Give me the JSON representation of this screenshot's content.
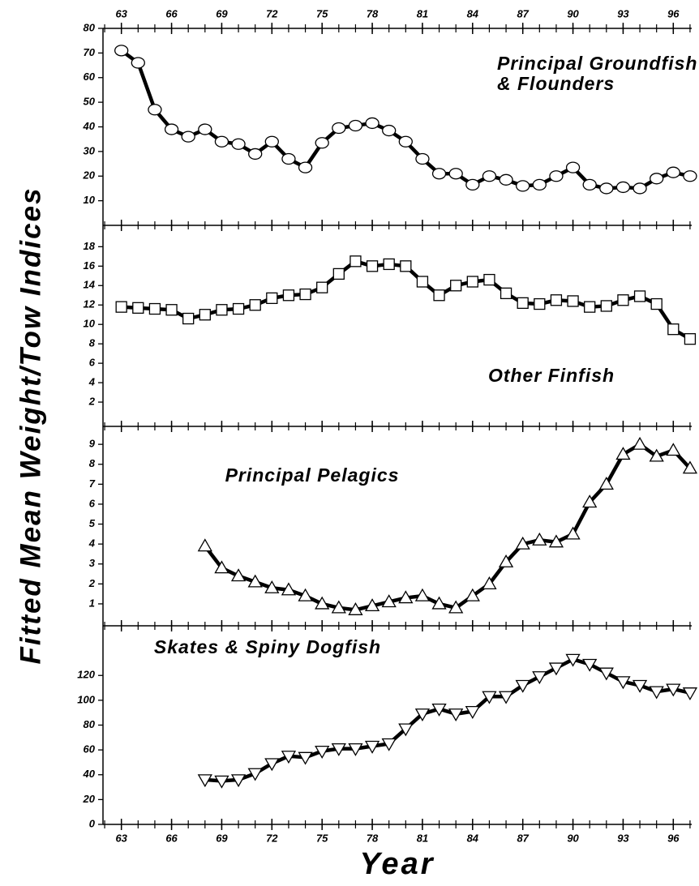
{
  "ylabel": "Fitted Mean Weight/Tow Indices",
  "xlabel": "Year",
  "chart_data": [
    {
      "type": "line",
      "title": [
        "Principal Groundfish",
        "& Flounders"
      ],
      "marker": "circle",
      "color": "#000000",
      "x": [
        63,
        64,
        65,
        66,
        67,
        68,
        69,
        70,
        71,
        72,
        73,
        74,
        75,
        76,
        77,
        78,
        79,
        80,
        81,
        82,
        83,
        84,
        85,
        86,
        87,
        88,
        89,
        90,
        91,
        92,
        93,
        94,
        95,
        96,
        97
      ],
      "values": [
        71,
        66,
        47,
        39,
        36,
        39,
        34,
        33,
        29,
        34,
        27,
        23.5,
        33.5,
        39.5,
        40.5,
        41.5,
        38.5,
        34,
        27,
        21,
        21,
        16.5,
        20,
        18.5,
        16,
        16.5,
        20,
        23.5,
        16.5,
        15,
        15.5,
        15,
        19,
        21.5,
        20
      ],
      "xlim": [
        61.9,
        97.1
      ],
      "xticks": [
        63,
        66,
        69,
        72,
        75,
        78,
        81,
        84,
        87,
        90,
        93,
        96
      ],
      "ylim": [
        0,
        80
      ],
      "yticks": [
        10,
        20,
        30,
        40,
        50,
        60,
        70,
        80
      ]
    },
    {
      "type": "line",
      "title": [
        "Other Finfish"
      ],
      "marker": "square",
      "color": "#000000",
      "x": [
        63,
        64,
        65,
        66,
        67,
        68,
        69,
        70,
        71,
        72,
        73,
        74,
        75,
        76,
        77,
        78,
        79,
        80,
        81,
        82,
        83,
        84,
        85,
        86,
        87,
        88,
        89,
        90,
        91,
        92,
        93,
        94,
        95,
        96,
        97
      ],
      "values": [
        11.8,
        11.7,
        11.6,
        11.5,
        10.6,
        11,
        11.5,
        11.6,
        12,
        12.7,
        13,
        13.1,
        13.8,
        15.2,
        16.5,
        16,
        16.2,
        16,
        14.4,
        13,
        14,
        14.4,
        14.6,
        13.2,
        12.2,
        12.1,
        12.5,
        12.4,
        11.8,
        11.9,
        12.5,
        12.9,
        12.1,
        9.5,
        8.5
      ],
      "xlim": [
        61.9,
        97.1
      ],
      "xticks": [
        63,
        66,
        69,
        72,
        75,
        78,
        81,
        84,
        87,
        90,
        93,
        96
      ],
      "ylim": [
        -0.5,
        20.2
      ],
      "yticks": [
        2,
        4,
        6,
        8,
        10,
        12,
        14,
        16,
        18
      ]
    },
    {
      "type": "line",
      "title": [
        "Principal Pelagics"
      ],
      "marker": "triangle-up",
      "color": "#000000",
      "x": [
        68,
        69,
        70,
        71,
        72,
        73,
        74,
        75,
        76,
        77,
        78,
        79,
        80,
        81,
        82,
        83,
        84,
        85,
        86,
        87,
        88,
        89,
        90,
        91,
        92,
        93,
        94,
        95,
        96,
        97
      ],
      "values": [
        3.9,
        2.8,
        2.4,
        2.1,
        1.8,
        1.7,
        1.4,
        1.0,
        0.8,
        0.7,
        0.9,
        1.1,
        1.3,
        1.4,
        1.0,
        0.8,
        1.4,
        2.0,
        3.1,
        4.0,
        4.2,
        4.1,
        4.5,
        6.1,
        7.0,
        8.5,
        9.0,
        8.4,
        8.7,
        7.8
      ],
      "xlim": [
        61.9,
        97.1
      ],
      "xticks": [
        63,
        66,
        69,
        72,
        75,
        78,
        81,
        84,
        87,
        90,
        93,
        96
      ],
      "ylim": [
        -0.1,
        9.9
      ],
      "yticks": [
        1,
        2,
        3,
        4,
        5,
        6,
        7,
        8,
        9
      ]
    },
    {
      "type": "line",
      "title": [
        "Skates & Spiny Dogfish"
      ],
      "marker": "triangle-down",
      "color": "#000000",
      "x": [
        68,
        69,
        70,
        71,
        72,
        73,
        74,
        75,
        76,
        77,
        78,
        79,
        80,
        81,
        82,
        83,
        84,
        85,
        86,
        87,
        88,
        89,
        90,
        91,
        92,
        93,
        94,
        95,
        96,
        97
      ],
      "values": [
        36,
        35,
        36,
        41,
        49,
        55,
        54,
        59,
        61,
        61,
        63,
        65,
        77,
        89,
        93,
        89,
        91,
        103,
        103,
        112,
        119,
        126,
        133,
        129,
        122,
        115,
        112,
        107,
        109,
        106
      ],
      "xlim": [
        61.9,
        97.1
      ],
      "xticks": [
        63,
        66,
        69,
        72,
        75,
        78,
        81,
        84,
        87,
        90,
        93,
        96
      ],
      "ylim": [
        0,
        160
      ],
      "yticks": [
        0,
        20,
        40,
        60,
        80,
        100,
        120
      ]
    }
  ]
}
